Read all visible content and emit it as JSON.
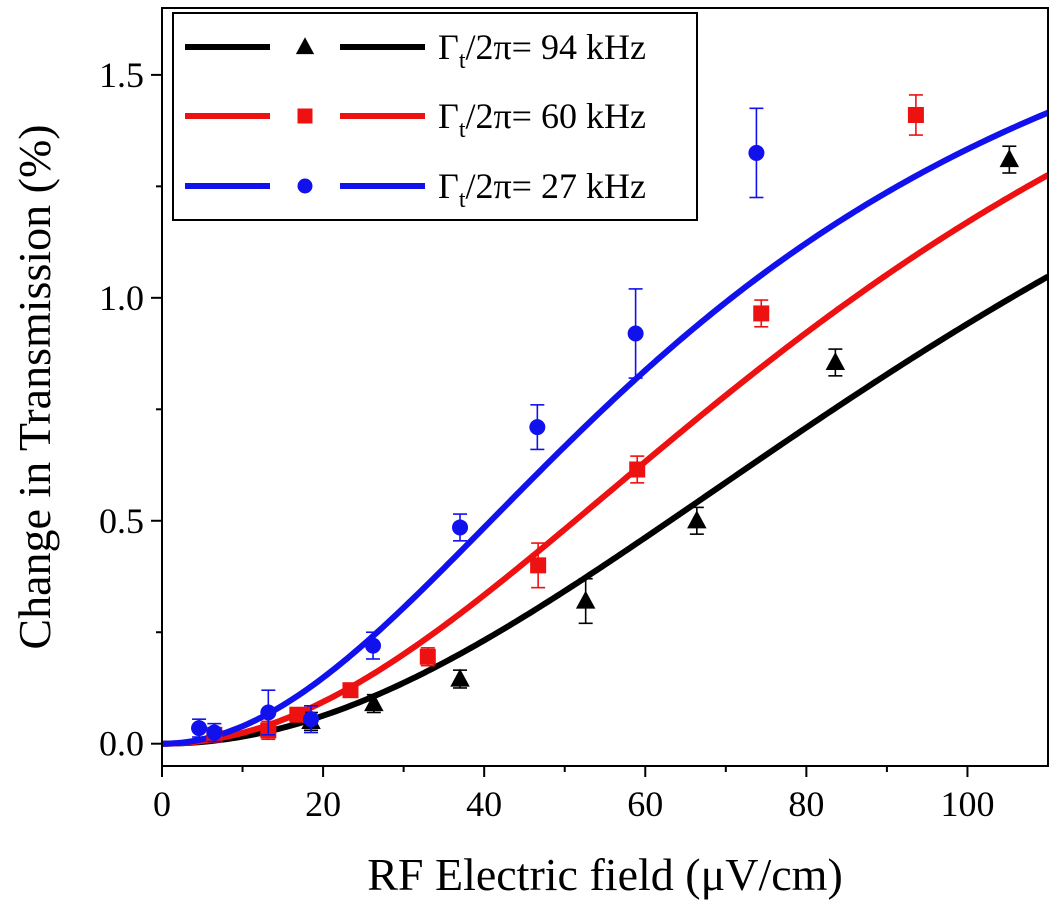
{
  "chart_data": {
    "type": "scatter",
    "title": "",
    "xlabel": "RF Electric field (μV/cm)",
    "ylabel": "Change in Transmission (%)",
    "xlim": [
      0,
      110
    ],
    "ylim": [
      -0.05,
      1.65
    ],
    "x_ticks": [
      0,
      20,
      40,
      60,
      80,
      100
    ],
    "x_tick_labels": [
      "0",
      "20",
      "40",
      "60",
      "80",
      "100"
    ],
    "y_ticks": [
      0.0,
      0.5,
      1.0,
      1.5
    ],
    "y_tick_labels": [
      "0.0",
      "0.5",
      "1.0",
      "1.5"
    ],
    "grid": false,
    "legend_position": "top-left",
    "series": [
      {
        "name": "94 kHz",
        "legend_prefix": "Γ",
        "legend_sub": "t",
        "legend_rest": "/2π= 94 kHz",
        "color": "#000000",
        "marker": "triangle",
        "points": [
          {
            "x": 18.5,
            "y": 0.05,
            "err": 0.02
          },
          {
            "x": 26.3,
            "y": 0.09,
            "err": 0.02
          },
          {
            "x": 37.0,
            "y": 0.145,
            "err": 0.02
          },
          {
            "x": 52.6,
            "y": 0.32,
            "err": 0.05
          },
          {
            "x": 66.4,
            "y": 0.5,
            "err": 0.03
          },
          {
            "x": 83.6,
            "y": 0.855,
            "err": 0.03
          },
          {
            "x": 105.2,
            "y": 1.31,
            "err": 0.03
          }
        ],
        "fit": {
          "A": 2.26,
          "B": 14000
        }
      },
      {
        "name": "60 kHz",
        "legend_prefix": "Γ",
        "legend_sub": "t",
        "legend_rest": "/2π= 60 kHz",
        "color": "#ee1111",
        "marker": "square",
        "points": [
          {
            "x": 6.5,
            "y": 0.02,
            "err": 0.015
          },
          {
            "x": 13.2,
            "y": 0.03,
            "err": 0.02
          },
          {
            "x": 16.8,
            "y": 0.065,
            "err": 0.015
          },
          {
            "x": 23.4,
            "y": 0.12,
            "err": 0.015
          },
          {
            "x": 33.0,
            "y": 0.195,
            "err": 0.02
          },
          {
            "x": 46.7,
            "y": 0.4,
            "err": 0.05
          },
          {
            "x": 59.0,
            "y": 0.615,
            "err": 0.03
          },
          {
            "x": 74.4,
            "y": 0.965,
            "err": 0.03
          },
          {
            "x": 93.6,
            "y": 1.41,
            "err": 0.045
          }
        ],
        "fit": {
          "A": 2.24,
          "B": 9150
        }
      },
      {
        "name": "27 kHz",
        "legend_prefix": "Γ",
        "legend_sub": "t",
        "legend_rest": "/2π= 27 kHz",
        "color": "#1111ee",
        "marker": "circle",
        "points": [
          {
            "x": 4.6,
            "y": 0.035,
            "err": 0.02
          },
          {
            "x": 6.5,
            "y": 0.025,
            "err": 0.02
          },
          {
            "x": 13.2,
            "y": 0.07,
            "err": 0.05
          },
          {
            "x": 18.5,
            "y": 0.055,
            "err": 0.03
          },
          {
            "x": 26.2,
            "y": 0.22,
            "err": 0.03
          },
          {
            "x": 37.0,
            "y": 0.485,
            "err": 0.03
          },
          {
            "x": 46.6,
            "y": 0.71,
            "err": 0.05
          },
          {
            "x": 58.8,
            "y": 0.92,
            "err": 0.1
          },
          {
            "x": 73.8,
            "y": 1.325,
            "err": 0.1
          }
        ],
        "fit": {
          "A": 2.0,
          "B": 5000
        }
      }
    ]
  }
}
